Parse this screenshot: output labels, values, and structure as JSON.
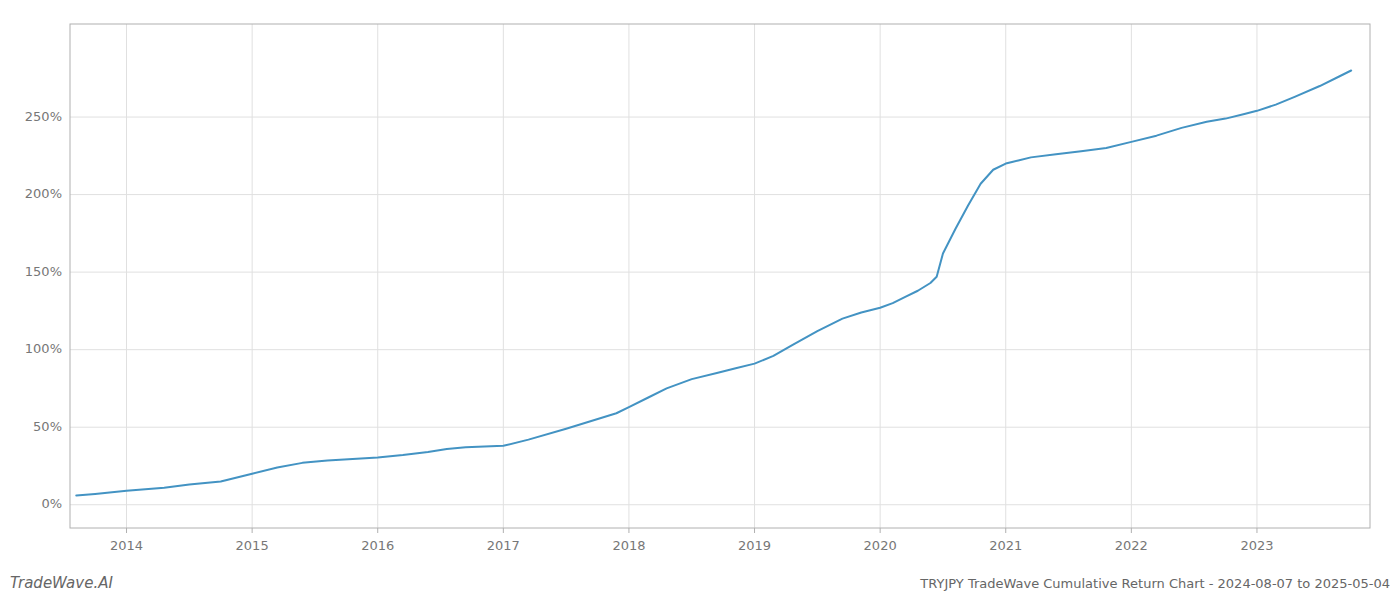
{
  "chart_data": {
    "type": "line",
    "title": "TRYJPY TradeWave Cumulative Return Chart - 2024-08-07 to 2025-05-04",
    "annotations": [
      "TradeWave.AI"
    ],
    "color": "#4393c3",
    "grid": true,
    "xlim": [
      2013.55,
      2023.9
    ],
    "xticks": [
      2014,
      2015,
      2016,
      2017,
      2018,
      2019,
      2020,
      2021,
      2022,
      2023
    ],
    "ylim": [
      -15,
      310
    ],
    "yticks": [
      {
        "value": 0,
        "label": "0%"
      },
      {
        "value": 50,
        "label": "50%"
      },
      {
        "value": 100,
        "label": "100%"
      },
      {
        "value": 150,
        "label": "150%"
      },
      {
        "value": 200,
        "label": "200%"
      },
      {
        "value": 250,
        "label": "250%"
      }
    ],
    "x": [
      2013.6,
      2013.75,
      2014.0,
      2014.3,
      2014.5,
      2014.75,
      2015.0,
      2015.2,
      2015.4,
      2015.6,
      2015.8,
      2016.0,
      2016.2,
      2016.4,
      2016.55,
      2016.7,
      2016.85,
      2017.0,
      2017.2,
      2017.5,
      2017.7,
      2017.9,
      2018.0,
      2018.15,
      2018.3,
      2018.5,
      2018.7,
      2018.85,
      2019.0,
      2019.15,
      2019.3,
      2019.5,
      2019.7,
      2019.85,
      2020.0,
      2020.1,
      2020.2,
      2020.3,
      2020.4,
      2020.45,
      2020.5,
      2020.6,
      2020.7,
      2020.8,
      2020.9,
      2021.0,
      2021.05,
      2021.1,
      2021.2,
      2021.4,
      2021.6,
      2021.8,
      2022.0,
      2022.2,
      2022.4,
      2022.6,
      2022.75,
      2022.9,
      2023.0,
      2023.15,
      2023.3,
      2023.5,
      2023.65,
      2023.75
    ],
    "values": [
      6,
      7,
      9,
      11,
      13,
      15,
      20,
      24,
      27,
      28.5,
      29.5,
      30.5,
      32,
      34,
      36,
      37,
      37.5,
      38,
      42,
      49,
      54,
      59,
      63,
      69,
      75,
      81,
      85,
      88,
      91,
      96,
      103,
      112,
      120,
      124,
      127,
      130,
      134,
      138,
      143,
      147,
      162,
      178,
      193,
      207,
      216,
      220,
      221,
      222,
      224,
      226,
      228,
      230,
      234,
      238,
      243,
      247,
      249,
      252,
      254,
      258,
      263,
      270,
      276,
      280
    ]
  }
}
